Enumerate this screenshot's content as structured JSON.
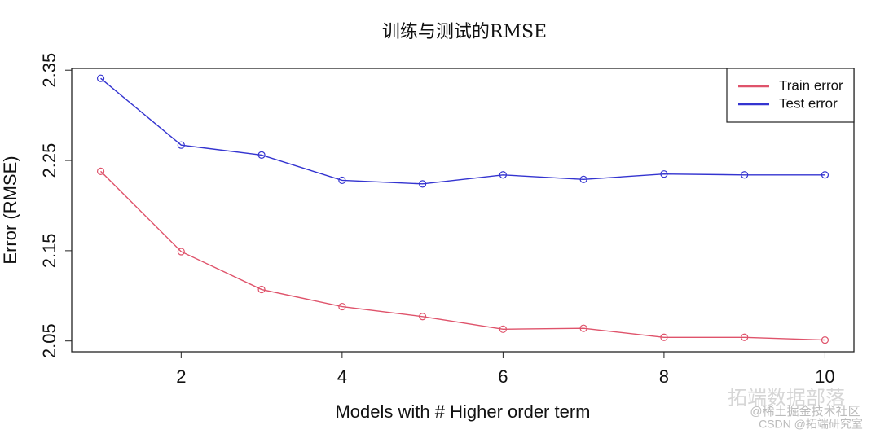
{
  "chart_data": {
    "type": "line",
    "title": "训练与测试的RMSE",
    "x_label": "Models with # Higher order term",
    "y_label": "Error (RMSE)",
    "x": [
      1,
      2,
      3,
      4,
      5,
      6,
      7,
      8,
      9,
      10
    ],
    "series": [
      {
        "name": "Train error",
        "color": "#df536b",
        "values": [
          2.238,
          2.149,
          2.107,
          2.088,
          2.077,
          2.063,
          2.064,
          2.054,
          2.054,
          2.051
        ]
      },
      {
        "name": "Test error",
        "color": "#3434d0",
        "values": [
          2.341,
          2.267,
          2.256,
          2.228,
          2.224,
          2.234,
          2.229,
          2.235,
          2.234,
          2.234
        ]
      }
    ],
    "xlim": [
      0.64,
      10.36
    ],
    "xticks": [
      2,
      4,
      6,
      8,
      10
    ],
    "ylim": [
      2.038,
      2.352
    ],
    "yticks": [
      2.05,
      2.15,
      2.25,
      2.35
    ],
    "legend": "top-right",
    "annotations": [
      "拓端数据部落",
      "@稀土掘金技术社区",
      "CSDN @拓端研究室"
    ]
  }
}
